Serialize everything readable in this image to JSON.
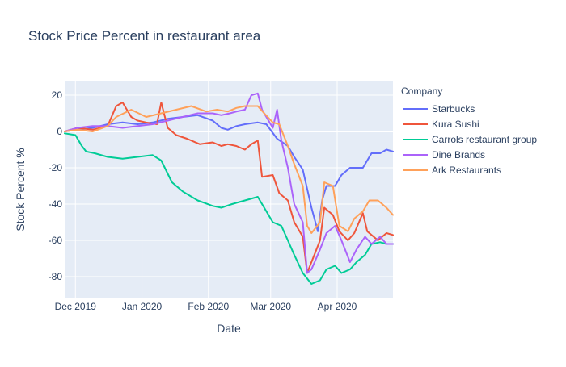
{
  "chart_data": {
    "type": "line",
    "title": "Stock Price Percent in restaurant area",
    "xlabel": "Date",
    "ylabel": "Stock Percent %",
    "x_range": [
      "2019-11-26",
      "2020-04-27"
    ],
    "ylim": [
      -92,
      28
    ],
    "grid": true,
    "background": "#E5ECF6",
    "x_ticks": [
      {
        "date": "2019-12-01",
        "label": "Dec 2019"
      },
      {
        "date": "2020-01-01",
        "label": "Jan 2020"
      },
      {
        "date": "2020-02-01",
        "label": "Feb 2020"
      },
      {
        "date": "2020-03-01",
        "label": "Mar 2020"
      },
      {
        "date": "2020-04-01",
        "label": "Apr 2020"
      }
    ],
    "y_ticks": [
      20,
      0,
      -20,
      -40,
      -60,
      -80
    ],
    "legend": {
      "title": "Company",
      "position": "right"
    },
    "series": [
      {
        "name": "Starbucks",
        "color": "#636EFA",
        "points": [
          [
            "2019-11-26",
            0
          ],
          [
            "2019-12-02",
            1
          ],
          [
            "2019-12-09",
            2
          ],
          [
            "2019-12-16",
            4
          ],
          [
            "2019-12-23",
            5
          ],
          [
            "2019-12-30",
            4
          ],
          [
            "2020-01-06",
            5
          ],
          [
            "2020-01-13",
            7
          ],
          [
            "2020-01-20",
            8
          ],
          [
            "2020-01-27",
            9
          ],
          [
            "2020-02-03",
            6
          ],
          [
            "2020-02-07",
            2
          ],
          [
            "2020-02-10",
            1
          ],
          [
            "2020-02-14",
            3
          ],
          [
            "2020-02-18",
            4
          ],
          [
            "2020-02-24",
            5
          ],
          [
            "2020-02-28",
            4
          ],
          [
            "2020-03-04",
            -4
          ],
          [
            "2020-03-09",
            -8
          ],
          [
            "2020-03-12",
            -14
          ],
          [
            "2020-03-16",
            -21
          ],
          [
            "2020-03-20",
            -42
          ],
          [
            "2020-03-23",
            -55
          ],
          [
            "2020-03-25",
            -38
          ],
          [
            "2020-03-27",
            -30
          ],
          [
            "2020-03-31",
            -30
          ],
          [
            "2020-04-03",
            -24
          ],
          [
            "2020-04-07",
            -20
          ],
          [
            "2020-04-13",
            -20
          ],
          [
            "2020-04-17",
            -12
          ],
          [
            "2020-04-21",
            -12
          ],
          [
            "2020-04-24",
            -10
          ],
          [
            "2020-04-27",
            -11
          ]
        ]
      },
      {
        "name": "Kura Sushi",
        "color": "#EF553B",
        "points": [
          [
            "2019-11-26",
            0
          ],
          [
            "2019-12-02",
            2
          ],
          [
            "2019-12-09",
            1
          ],
          [
            "2019-12-16",
            3
          ],
          [
            "2019-12-20",
            14
          ],
          [
            "2019-12-23",
            16
          ],
          [
            "2019-12-27",
            8
          ],
          [
            "2019-12-30",
            6
          ],
          [
            "2020-01-03",
            5
          ],
          [
            "2020-01-08",
            4
          ],
          [
            "2020-01-10",
            16
          ],
          [
            "2020-01-13",
            2
          ],
          [
            "2020-01-17",
            -2
          ],
          [
            "2020-01-22",
            -4
          ],
          [
            "2020-01-28",
            -7
          ],
          [
            "2020-02-03",
            -6
          ],
          [
            "2020-02-07",
            -8
          ],
          [
            "2020-02-10",
            -7
          ],
          [
            "2020-02-14",
            -8
          ],
          [
            "2020-02-18",
            -10
          ],
          [
            "2020-02-21",
            -7
          ],
          [
            "2020-02-24",
            -5
          ],
          [
            "2020-02-26",
            -25
          ],
          [
            "2020-03-02",
            -24
          ],
          [
            "2020-03-05",
            -34
          ],
          [
            "2020-03-09",
            -38
          ],
          [
            "2020-03-12",
            -50
          ],
          [
            "2020-03-16",
            -58
          ],
          [
            "2020-03-18",
            -78
          ],
          [
            "2020-03-20",
            -72
          ],
          [
            "2020-03-24",
            -60
          ],
          [
            "2020-03-26",
            -42
          ],
          [
            "2020-03-30",
            -46
          ],
          [
            "2020-04-02",
            -55
          ],
          [
            "2020-04-06",
            -60
          ],
          [
            "2020-04-09",
            -56
          ],
          [
            "2020-04-13",
            -45
          ],
          [
            "2020-04-15",
            -55
          ],
          [
            "2020-04-20",
            -60
          ],
          [
            "2020-04-24",
            -56
          ],
          [
            "2020-04-27",
            -57
          ]
        ]
      },
      {
        "name": "Carrols restaurant group",
        "color": "#00CC96",
        "points": [
          [
            "2019-11-26",
            -1
          ],
          [
            "2019-12-01",
            -2
          ],
          [
            "2019-12-04",
            -8
          ],
          [
            "2019-12-06",
            -11
          ],
          [
            "2019-12-10",
            -12
          ],
          [
            "2019-12-16",
            -14
          ],
          [
            "2019-12-23",
            -15
          ],
          [
            "2019-12-30",
            -14
          ],
          [
            "2020-01-06",
            -13
          ],
          [
            "2020-01-10",
            -16
          ],
          [
            "2020-01-15",
            -28
          ],
          [
            "2020-01-20",
            -33
          ],
          [
            "2020-01-27",
            -38
          ],
          [
            "2020-02-03",
            -41
          ],
          [
            "2020-02-07",
            -42
          ],
          [
            "2020-02-12",
            -40
          ],
          [
            "2020-02-18",
            -38
          ],
          [
            "2020-02-24",
            -36
          ],
          [
            "2020-02-26",
            -40
          ],
          [
            "2020-03-02",
            -50
          ],
          [
            "2020-03-06",
            -52
          ],
          [
            "2020-03-09",
            -60
          ],
          [
            "2020-03-12",
            -68
          ],
          [
            "2020-03-16",
            -78
          ],
          [
            "2020-03-20",
            -84
          ],
          [
            "2020-03-24",
            -82
          ],
          [
            "2020-03-27",
            -76
          ],
          [
            "2020-03-31",
            -74
          ],
          [
            "2020-04-03",
            -78
          ],
          [
            "2020-04-07",
            -76
          ],
          [
            "2020-04-10",
            -72
          ],
          [
            "2020-04-14",
            -68
          ],
          [
            "2020-04-17",
            -62
          ],
          [
            "2020-04-21",
            -61
          ],
          [
            "2020-04-24",
            -62
          ],
          [
            "2020-04-27",
            -62
          ]
        ]
      },
      {
        "name": "Dine Brands",
        "color": "#AB63FA",
        "points": [
          [
            "2019-11-26",
            0
          ],
          [
            "2019-12-02",
            2
          ],
          [
            "2019-12-09",
            3
          ],
          [
            "2019-12-16",
            3
          ],
          [
            "2019-12-23",
            2
          ],
          [
            "2019-12-30",
            3
          ],
          [
            "2020-01-06",
            4
          ],
          [
            "2020-01-13",
            6
          ],
          [
            "2020-01-20",
            8
          ],
          [
            "2020-01-27",
            10
          ],
          [
            "2020-02-03",
            10
          ],
          [
            "2020-02-07",
            9
          ],
          [
            "2020-02-11",
            10
          ],
          [
            "2020-02-14",
            11
          ],
          [
            "2020-02-18",
            12
          ],
          [
            "2020-02-21",
            20
          ],
          [
            "2020-02-24",
            21
          ],
          [
            "2020-02-26",
            12
          ],
          [
            "2020-03-02",
            2
          ],
          [
            "2020-03-04",
            12
          ],
          [
            "2020-03-06",
            -5
          ],
          [
            "2020-03-09",
            -20
          ],
          [
            "2020-03-12",
            -40
          ],
          [
            "2020-03-16",
            -50
          ],
          [
            "2020-03-18",
            -78
          ],
          [
            "2020-03-20",
            -76
          ],
          [
            "2020-03-24",
            -65
          ],
          [
            "2020-03-27",
            -56
          ],
          [
            "2020-03-31",
            -52
          ],
          [
            "2020-04-03",
            -60
          ],
          [
            "2020-04-07",
            -72
          ],
          [
            "2020-04-10",
            -65
          ],
          [
            "2020-04-14",
            -58
          ],
          [
            "2020-04-17",
            -62
          ],
          [
            "2020-04-21",
            -58
          ],
          [
            "2020-04-24",
            -62
          ],
          [
            "2020-04-27",
            -62
          ]
        ]
      },
      {
        "name": "Ark Restaurants",
        "color": "#FFA15A",
        "points": [
          [
            "2019-11-26",
            0
          ],
          [
            "2019-12-02",
            1
          ],
          [
            "2019-12-09",
            0
          ],
          [
            "2019-12-16",
            3
          ],
          [
            "2019-12-20",
            8
          ],
          [
            "2019-12-27",
            12
          ],
          [
            "2020-01-03",
            8
          ],
          [
            "2020-01-10",
            10
          ],
          [
            "2020-01-17",
            12
          ],
          [
            "2020-01-24",
            14
          ],
          [
            "2020-01-31",
            11
          ],
          [
            "2020-02-05",
            12
          ],
          [
            "2020-02-10",
            11
          ],
          [
            "2020-02-14",
            13
          ],
          [
            "2020-02-18",
            14
          ],
          [
            "2020-02-24",
            14
          ],
          [
            "2020-02-27",
            10
          ],
          [
            "2020-03-02",
            5
          ],
          [
            "2020-03-05",
            4
          ],
          [
            "2020-03-09",
            -8
          ],
          [
            "2020-03-12",
            -18
          ],
          [
            "2020-03-16",
            -30
          ],
          [
            "2020-03-18",
            -52
          ],
          [
            "2020-03-20",
            -56
          ],
          [
            "2020-03-24",
            -50
          ],
          [
            "2020-03-26",
            -28
          ],
          [
            "2020-03-30",
            -30
          ],
          [
            "2020-04-02",
            -52
          ],
          [
            "2020-04-06",
            -55
          ],
          [
            "2020-04-09",
            -48
          ],
          [
            "2020-04-13",
            -44
          ],
          [
            "2020-04-16",
            -38
          ],
          [
            "2020-04-20",
            -38
          ],
          [
            "2020-04-24",
            -42
          ],
          [
            "2020-04-27",
            -46
          ]
        ]
      }
    ]
  }
}
